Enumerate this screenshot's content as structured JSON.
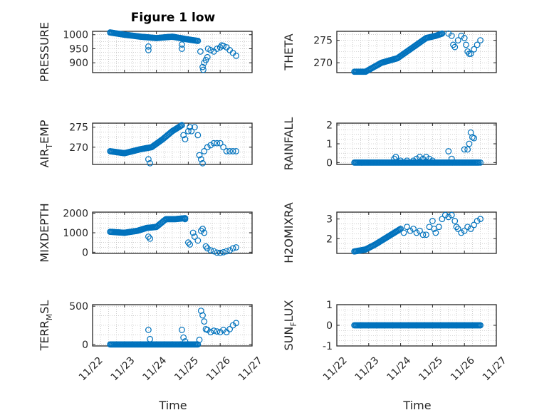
{
  "figure": {
    "title": "Figure 1 low"
  },
  "chart_data": [
    {
      "type": "scatter",
      "ylabel": "PRESSURE",
      "ylim": [
        865,
        1012
      ],
      "yticks": [
        900,
        950,
        1000
      ],
      "xlim": [
        0,
        5
      ],
      "xticks": [
        "11/22",
        "11/23",
        "11/24",
        "11/25",
        "11/26",
        "11/27"
      ],
      "show_xticklabels": false,
      "segments": [
        [
          0.55,
          1008
        ],
        [
          1.0,
          1000
        ],
        [
          1.5,
          993
        ],
        [
          2.0,
          988
        ],
        [
          2.5,
          993
        ],
        [
          3.0,
          983
        ],
        [
          3.3,
          978
        ]
      ],
      "points": [
        [
          1.75,
          958
        ],
        [
          1.75,
          945
        ],
        [
          2.8,
          965
        ],
        [
          2.8,
          950
        ],
        [
          3.38,
          940
        ],
        [
          3.45,
          885
        ],
        [
          3.47,
          875
        ],
        [
          3.5,
          900
        ],
        [
          3.55,
          910
        ],
        [
          3.6,
          920
        ],
        [
          3.62,
          950
        ],
        [
          3.7,
          945
        ],
        [
          3.8,
          940
        ],
        [
          3.9,
          950
        ],
        [
          4.0,
          955
        ],
        [
          4.05,
          962
        ],
        [
          4.1,
          960
        ],
        [
          4.2,
          955
        ],
        [
          4.3,
          945
        ],
        [
          4.4,
          935
        ],
        [
          4.5,
          925
        ]
      ],
      "grid": true
    },
    {
      "type": "scatter",
      "ylabel": "THETA",
      "ylim": [
        267.8,
        277
      ],
      "yticks": [
        270,
        275
      ],
      "xlim": [
        0,
        5
      ],
      "xticks": [
        "11/22",
        "11/23",
        "11/24",
        "11/25",
        "11/26",
        "11/27"
      ],
      "show_xticklabels": false,
      "segments": [
        [
          0.55,
          268
        ],
        [
          0.9,
          268
        ],
        [
          1.4,
          270
        ],
        [
          1.9,
          271
        ],
        [
          2.2,
          272.5
        ],
        [
          2.5,
          274
        ],
        [
          2.8,
          275.5
        ],
        [
          3.1,
          276
        ],
        [
          3.3,
          276.5
        ]
      ],
      "points": [
        [
          3.5,
          276.5
        ],
        [
          3.6,
          276
        ],
        [
          3.65,
          274
        ],
        [
          3.7,
          273.5
        ],
        [
          3.8,
          275
        ],
        [
          3.9,
          276
        ],
        [
          4.0,
          275.5
        ],
        [
          4.05,
          274
        ],
        [
          4.1,
          272.5
        ],
        [
          4.15,
          272
        ],
        [
          4.2,
          272
        ],
        [
          4.3,
          273
        ],
        [
          4.4,
          274
        ],
        [
          4.5,
          275
        ]
      ],
      "grid": true
    },
    {
      "type": "scatter",
      "ylabel": "AIR_TEMP",
      "ylim": [
        265.7,
        276
      ],
      "yticks": [
        270,
        275
      ],
      "xlim": [
        0,
        5
      ],
      "xticks": [
        "11/22",
        "11/23",
        "11/24",
        "11/25",
        "11/26",
        "11/27"
      ],
      "show_xticklabels": false,
      "segments": [
        [
          0.55,
          269
        ],
        [
          1.0,
          268.5
        ],
        [
          1.5,
          269.5
        ],
        [
          1.85,
          270
        ],
        [
          2.2,
          272
        ],
        [
          2.5,
          274
        ],
        [
          2.8,
          275.5
        ]
      ],
      "points": [
        [
          1.75,
          267
        ],
        [
          1.8,
          266
        ],
        [
          2.85,
          273
        ],
        [
          2.9,
          272
        ],
        [
          3.0,
          274
        ],
        [
          3.05,
          275
        ],
        [
          3.1,
          274
        ],
        [
          3.2,
          275
        ],
        [
          3.3,
          273
        ],
        [
          3.35,
          268
        ],
        [
          3.4,
          267
        ],
        [
          3.45,
          266
        ],
        [
          3.5,
          269
        ],
        [
          3.6,
          270
        ],
        [
          3.7,
          270.5
        ],
        [
          3.8,
          271
        ],
        [
          3.9,
          271
        ],
        [
          4.0,
          271
        ],
        [
          4.1,
          270
        ],
        [
          4.2,
          269
        ],
        [
          4.3,
          269
        ],
        [
          4.4,
          269
        ],
        [
          4.5,
          269
        ]
      ],
      "grid": true
    },
    {
      "type": "scatter",
      "ylabel": "RAINFALL",
      "ylim": [
        -0.1,
        2.1
      ],
      "yticks": [
        0,
        1,
        2
      ],
      "xlim": [
        0,
        5
      ],
      "xticks": [
        "11/22",
        "11/23",
        "11/24",
        "11/25",
        "11/26",
        "11/27"
      ],
      "show_xticklabels": false,
      "segments": [
        [
          0.55,
          0
        ],
        [
          4.45,
          0
        ]
      ],
      "points": [
        [
          1.8,
          0.2
        ],
        [
          1.85,
          0.3
        ],
        [
          2.0,
          0.1
        ],
        [
          2.2,
          0.1
        ],
        [
          2.4,
          0.1
        ],
        [
          2.5,
          0.2
        ],
        [
          2.6,
          0.3
        ],
        [
          2.7,
          0.2
        ],
        [
          2.8,
          0.3
        ],
        [
          2.9,
          0.2
        ],
        [
          3.0,
          0.1
        ],
        [
          3.5,
          0.6
        ],
        [
          3.6,
          0.2
        ],
        [
          4.0,
          0.7
        ],
        [
          4.1,
          0.7
        ],
        [
          4.15,
          1.0
        ],
        [
          4.2,
          1.6
        ],
        [
          4.25,
          1.35
        ],
        [
          4.3,
          1.3
        ],
        [
          4.5,
          0
        ]
      ],
      "grid": true
    },
    {
      "type": "scatter",
      "ylabel": "MIXDEPTH",
      "ylim": [
        -60,
        2060
      ],
      "yticks": [
        0,
        1000,
        2000
      ],
      "xlim": [
        0,
        5
      ],
      "xticks": [
        "11/22",
        "11/23",
        "11/24",
        "11/25",
        "11/26",
        "11/27"
      ],
      "show_xticklabels": false,
      "segments": [
        [
          0.55,
          1050
        ],
        [
          1.0,
          1000
        ],
        [
          1.4,
          1100
        ],
        [
          1.7,
          1250
        ],
        [
          2.0,
          1300
        ],
        [
          2.3,
          1700
        ],
        [
          2.6,
          1700
        ],
        [
          2.9,
          1750
        ]
      ],
      "points": [
        [
          1.75,
          800
        ],
        [
          1.8,
          700
        ],
        [
          2.9,
          1700
        ],
        [
          3.0,
          500
        ],
        [
          3.05,
          400
        ],
        [
          3.15,
          1000
        ],
        [
          3.2,
          800
        ],
        [
          3.3,
          600
        ],
        [
          3.4,
          1100
        ],
        [
          3.45,
          1200
        ],
        [
          3.5,
          1000
        ],
        [
          3.55,
          300
        ],
        [
          3.6,
          200
        ],
        [
          3.7,
          100
        ],
        [
          3.8,
          50
        ],
        [
          3.9,
          -20
        ],
        [
          4.0,
          -30
        ],
        [
          4.1,
          0
        ],
        [
          4.2,
          50
        ],
        [
          4.3,
          100
        ],
        [
          4.4,
          200
        ],
        [
          4.5,
          250
        ]
      ],
      "grid": true
    },
    {
      "type": "scatter",
      "ylabel": "H2OMIXRA",
      "ylim": [
        1.25,
        3.35
      ],
      "yticks": [
        2,
        3
      ],
      "xlim": [
        0,
        5
      ],
      "xticks": [
        "11/22",
        "11/23",
        "11/24",
        "11/25",
        "11/26",
        "11/27"
      ],
      "show_xticklabels": false,
      "segments": [
        [
          0.55,
          1.35
        ],
        [
          0.9,
          1.45
        ],
        [
          1.2,
          1.7
        ],
        [
          1.5,
          2.0
        ],
        [
          1.8,
          2.3
        ],
        [
          2.0,
          2.5
        ]
      ],
      "points": [
        [
          2.1,
          2.3
        ],
        [
          2.2,
          2.6
        ],
        [
          2.3,
          2.4
        ],
        [
          2.4,
          2.5
        ],
        [
          2.5,
          2.3
        ],
        [
          2.6,
          2.4
        ],
        [
          2.7,
          2.2
        ],
        [
          2.8,
          2.2
        ],
        [
          2.9,
          2.6
        ],
        [
          3.0,
          2.9
        ],
        [
          3.05,
          2.5
        ],
        [
          3.1,
          2.3
        ],
        [
          3.2,
          2.6
        ],
        [
          3.3,
          3.0
        ],
        [
          3.4,
          3.2
        ],
        [
          3.5,
          3.1
        ],
        [
          3.6,
          3.2
        ],
        [
          3.7,
          2.9
        ],
        [
          3.75,
          2.6
        ],
        [
          3.8,
          2.5
        ],
        [
          3.9,
          2.3
        ],
        [
          4.0,
          2.4
        ],
        [
          4.1,
          2.6
        ],
        [
          4.2,
          2.5
        ],
        [
          4.3,
          2.7
        ],
        [
          4.4,
          2.9
        ],
        [
          4.5,
          3.0
        ]
      ],
      "grid": true
    },
    {
      "type": "scatter",
      "ylabel": "TERR_MSL",
      "ylim": [
        -20,
        520
      ],
      "yticks": [
        0,
        500
      ],
      "xlim": [
        0,
        5
      ],
      "xticks": [
        "11/22",
        "11/23",
        "11/24",
        "11/25",
        "11/26",
        "11/27"
      ],
      "show_xticklabels": true,
      "segments": [
        [
          0.55,
          0
        ],
        [
          3.3,
          0
        ]
      ],
      "points": [
        [
          1.75,
          190
        ],
        [
          1.8,
          70
        ],
        [
          2.8,
          190
        ],
        [
          2.85,
          90
        ],
        [
          2.9,
          40
        ],
        [
          3.35,
          60
        ],
        [
          3.4,
          440
        ],
        [
          3.45,
          380
        ],
        [
          3.5,
          300
        ],
        [
          3.55,
          200
        ],
        [
          3.6,
          190
        ],
        [
          3.7,
          160
        ],
        [
          3.8,
          180
        ],
        [
          3.9,
          170
        ],
        [
          4.0,
          160
        ],
        [
          4.1,
          190
        ],
        [
          4.2,
          160
        ],
        [
          4.3,
          200
        ],
        [
          4.4,
          250
        ],
        [
          4.5,
          280
        ]
      ],
      "grid": true
    },
    {
      "type": "scatter",
      "ylabel": "SUN_FLUX",
      "ylim": [
        -1,
        1
      ],
      "yticks": [
        -1,
        0,
        1
      ],
      "xlim": [
        0,
        5
      ],
      "xticks": [
        "11/22",
        "11/23",
        "11/24",
        "11/25",
        "11/26",
        "11/27"
      ],
      "show_xticklabels": true,
      "segments": [
        [
          0.55,
          0
        ],
        [
          4.5,
          0
        ]
      ],
      "points": [],
      "grid": true
    }
  ],
  "xlabels": [
    "Time",
    "Time"
  ]
}
